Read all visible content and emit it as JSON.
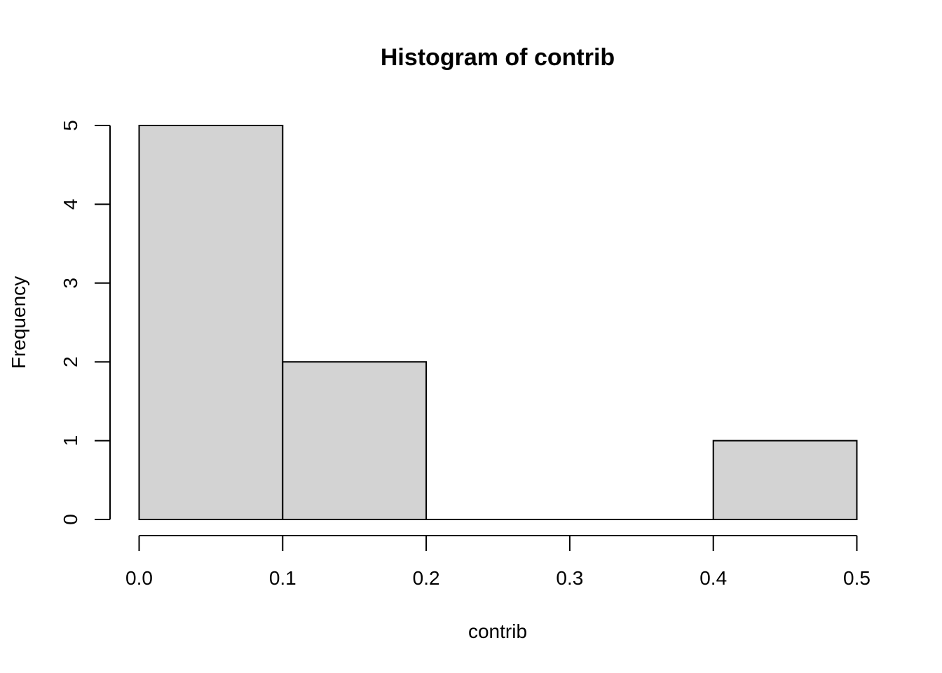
{
  "chart_data": {
    "type": "bar",
    "title": "Histogram of contrib",
    "xlabel": "contrib",
    "ylabel": "Frequency",
    "bins": [
      {
        "x0": 0.0,
        "x1": 0.1,
        "count": 5
      },
      {
        "x0": 0.1,
        "x1": 0.2,
        "count": 2
      },
      {
        "x0": 0.2,
        "x1": 0.3,
        "count": 0
      },
      {
        "x0": 0.3,
        "x1": 0.4,
        "count": 0
      },
      {
        "x0": 0.4,
        "x1": 0.5,
        "count": 1
      }
    ],
    "x_ticks": [
      "0.0",
      "0.1",
      "0.2",
      "0.3",
      "0.4",
      "0.5"
    ],
    "y_ticks": [
      "0",
      "1",
      "2",
      "3",
      "4",
      "5"
    ],
    "xlim": [
      0.0,
      0.5
    ],
    "ylim": [
      0,
      5
    ],
    "grid": false,
    "legend": "none",
    "colors": {
      "bar_fill": "#d3d3d3",
      "bar_stroke": "#000000",
      "axis": "#000000",
      "background": "#ffffff"
    }
  }
}
